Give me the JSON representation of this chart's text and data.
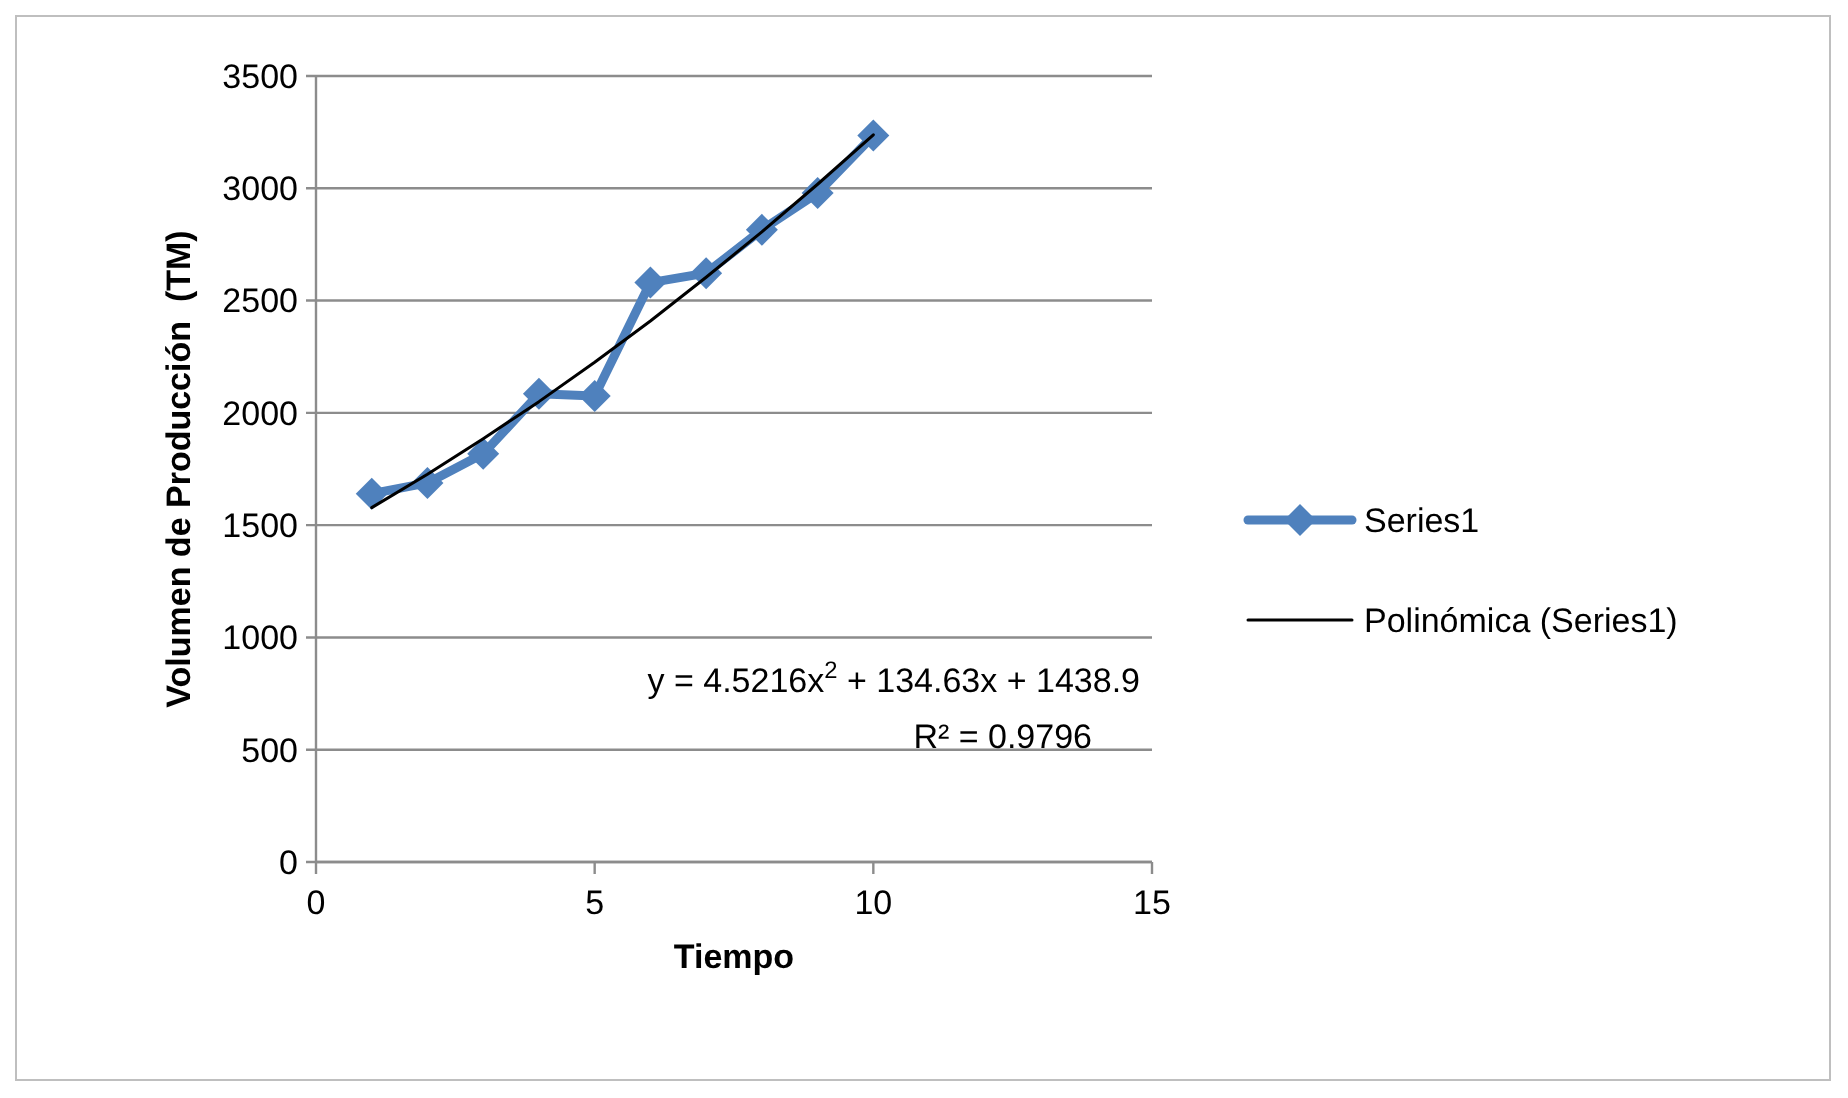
{
  "chart_data": {
    "type": "line",
    "xlabel": "Tiempo",
    "ylabel": "Volumen de Producción  (TM)",
    "x": [
      1,
      2,
      3,
      4,
      5,
      6,
      7,
      8,
      9,
      10
    ],
    "series": [
      {
        "name": "Series1",
        "color": "#4f81bd",
        "marker": "diamond",
        "values": [
          1640,
          1688,
          1818,
          2085,
          2075,
          2580,
          2622,
          2815,
          2979,
          3235
        ]
      },
      {
        "name": "Polinómica (Series1)",
        "color": "#000000",
        "marker": "none",
        "values": [
          1578,
          1727,
          1885,
          2050,
          2225,
          2409,
          2604,
          2806,
          3018,
          3238
        ]
      }
    ],
    "xlim": [
      0,
      15
    ],
    "xticks": [
      0,
      5,
      10,
      15
    ],
    "ylim": [
      0,
      3500
    ],
    "yticks": [
      0,
      500,
      1000,
      1500,
      2000,
      2500,
      3000,
      3500
    ],
    "grid": "y",
    "legend": "right",
    "annotations": [
      "y = 4.5216x$^{2}$ + 134.63x + 1438.9",
      "R² = 0.9796"
    ]
  }
}
